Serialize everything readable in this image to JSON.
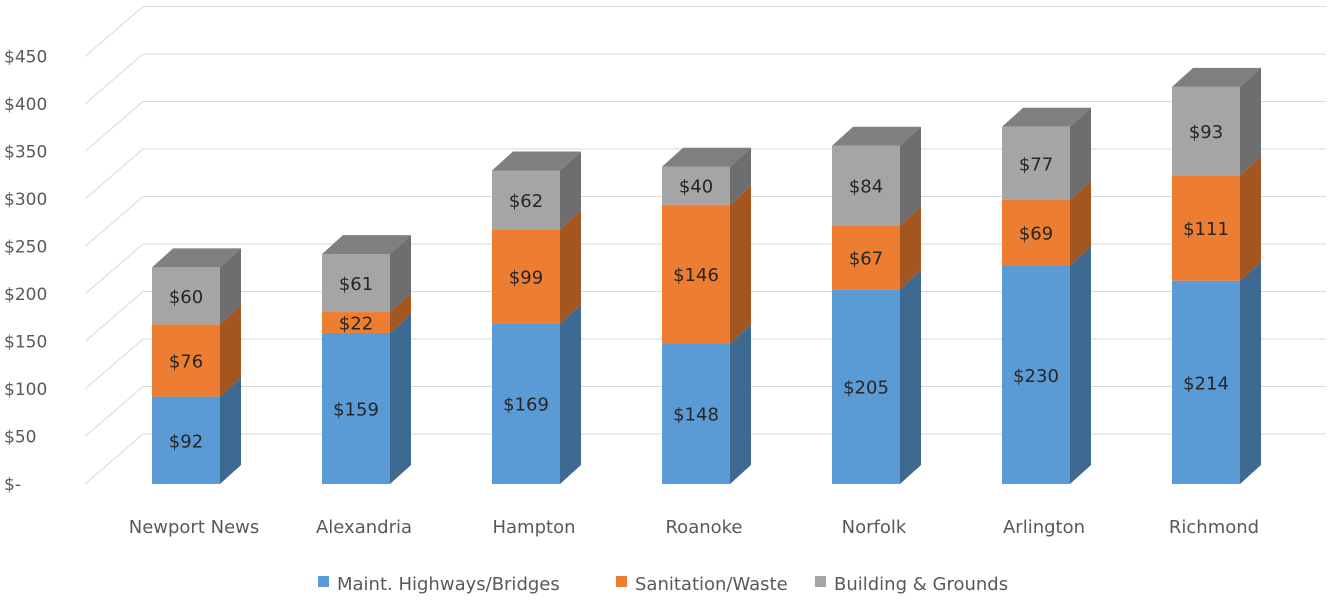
{
  "chart_data": {
    "type": "bar",
    "stacked": true,
    "style": "3d-column",
    "categories": [
      "Newport News",
      "Alexandria",
      "Hampton",
      "Roanoke",
      "Norfolk",
      "Arlington",
      "Richmond"
    ],
    "series": [
      {
        "name": "Maint. Highways/Bridges",
        "values": [
          92,
          159,
          169,
          148,
          205,
          230,
          214
        ],
        "labels": [
          "$92",
          "$159",
          "$169",
          "$148",
          "$205",
          "$230",
          "$214"
        ],
        "color": "#5B9BD5",
        "side_color": "#3E6A91",
        "top_color": "#4A7FB0"
      },
      {
        "name": "Sanitation/Waste",
        "values": [
          76,
          22,
          99,
          146,
          67,
          69,
          111
        ],
        "labels": [
          "$76",
          "$22",
          "$99",
          "$146",
          "$67",
          "$69",
          "$111"
        ],
        "color": "#ED7D31",
        "side_color": "#A3561F",
        "top_color": "#C86828"
      },
      {
        "name": "Building & Grounds",
        "values": [
          60,
          61,
          62,
          40,
          84,
          77,
          93
        ],
        "labels": [
          "$60",
          "$61",
          "$62",
          "$40",
          "$84",
          "$77",
          "$93"
        ],
        "color": "#A5A5A5",
        "side_color": "#6E6E6E",
        "top_color": "#7F7F7F"
      }
    ],
    "ylim": [
      0,
      450
    ],
    "yticks": [
      0,
      50,
      100,
      150,
      200,
      250,
      300,
      350,
      400,
      450
    ],
    "ytick_labels": [
      "$-",
      "$50",
      "$100",
      "$150",
      "$200",
      "$250",
      "$300",
      "$350",
      "$400",
      "$450"
    ],
    "title": "",
    "xlabel": "",
    "ylabel": "",
    "grid": true,
    "legend_position": "bottom"
  }
}
